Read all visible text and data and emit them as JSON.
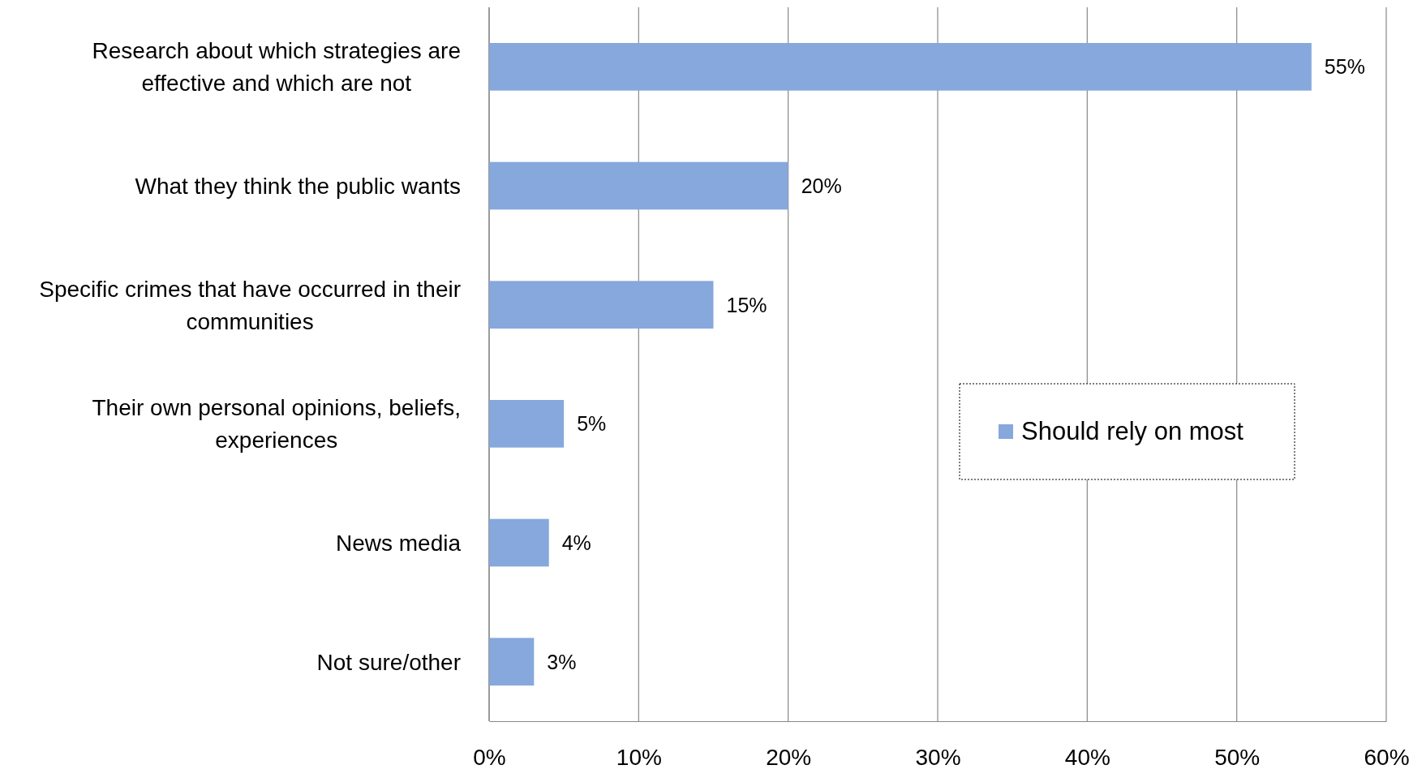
{
  "chart_data": {
    "type": "bar",
    "orientation": "horizontal",
    "categories": [
      "Research about which strategies are effective and which are not",
      "What they think the public wants",
      "Specific crimes that have occurred in their communities",
      "Their own personal opinions, beliefs, experiences",
      "News media",
      "Not sure/other"
    ],
    "series": [
      {
        "name": "Should rely on most",
        "color": "#86a8dc",
        "values": [
          55,
          20,
          15,
          5,
          4,
          3
        ],
        "value_labels": [
          "55%",
          "20%",
          "15%",
          "5%",
          "4%",
          "3%"
        ]
      }
    ],
    "xlim": [
      0,
      60
    ],
    "xticks": [
      {
        "value": 0,
        "label": "0%"
      },
      {
        "value": 10,
        "label": "10%"
      },
      {
        "value": 20,
        "label": "20%"
      },
      {
        "value": 30,
        "label": "30%"
      },
      {
        "value": 40,
        "label": "40%"
      },
      {
        "value": 50,
        "label": "50%"
      },
      {
        "value": 60,
        "label": "60%"
      }
    ],
    "grid": "x",
    "legend": "right"
  }
}
